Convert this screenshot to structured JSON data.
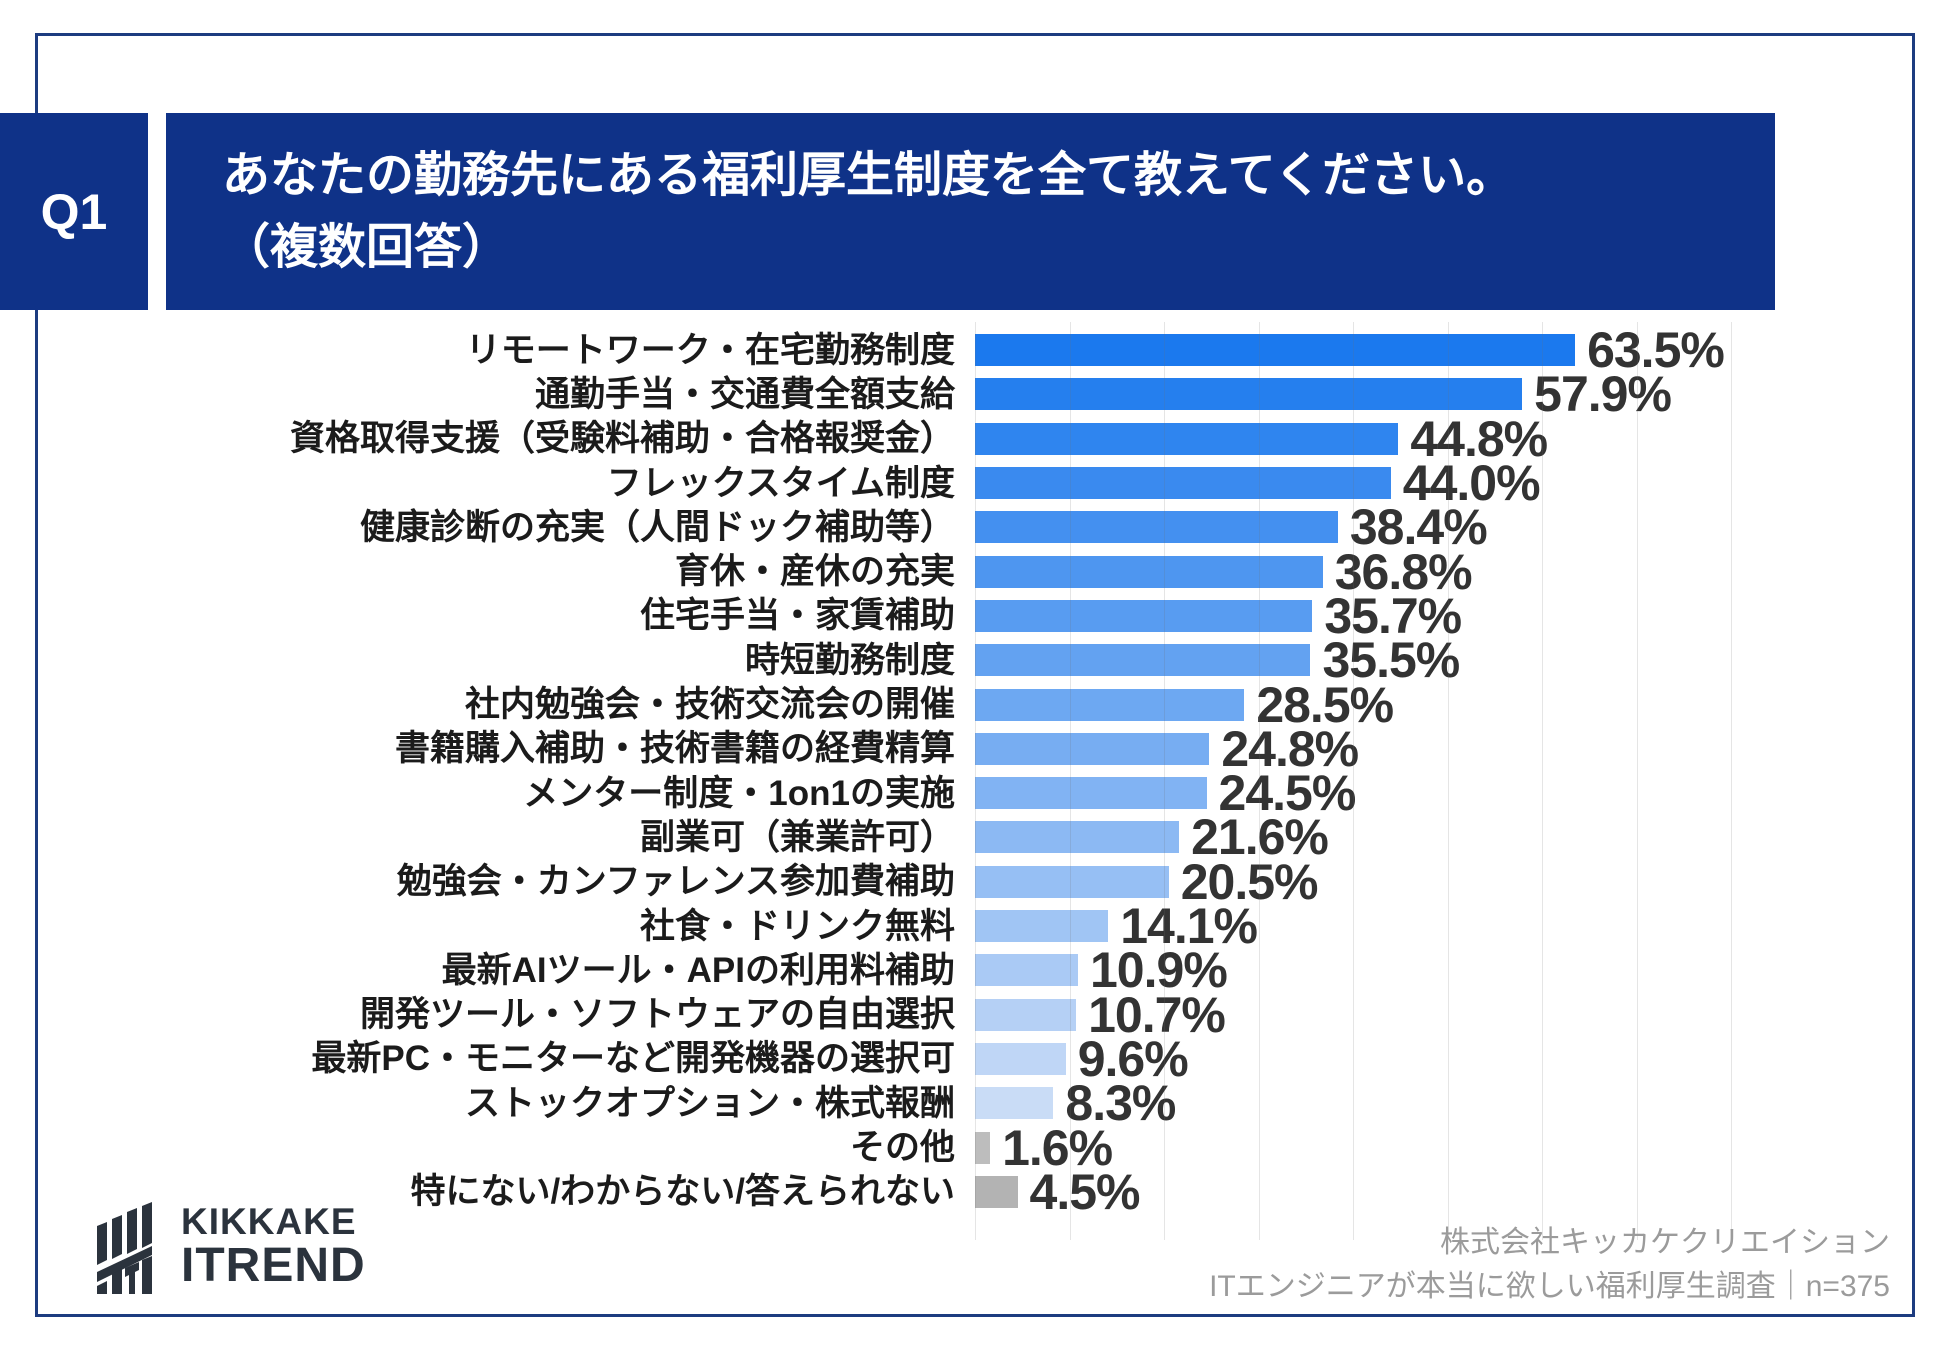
{
  "header": {
    "q_label": "Q1",
    "title_line1": "あなたの勤務先にある福利厚生制度を全て教えてください。",
    "title_line2": "（複数回答）"
  },
  "chart_data": {
    "type": "bar",
    "orientation": "horizontal",
    "unit": "%",
    "xlim": [
      0,
      80
    ],
    "gridline_interval": 10,
    "grid": true,
    "legend": false,
    "categories": [
      "リモートワーク・在宅勤務制度",
      "通勤手当・交通費全額支給",
      "資格取得支援（受験料補助・合格報奨金）",
      "フレックスタイム制度",
      "健康診断の充実（人間ドック補助等）",
      "育休・産休の充実",
      "住宅手当・家賃補助",
      "時短勤務制度",
      "社内勉強会・技術交流会の開催",
      "書籍購入補助・技術書籍の経費精算",
      "メンター制度・1on1の実施",
      "副業可（兼業許可）",
      "勉強会・カンファレンス参加費補助",
      "社食・ドリンク無料",
      "最新AIツール・APIの利用料補助",
      "開発ツール・ソフトウェアの自由選択",
      "最新PC・モニターなど開発機器の選択可",
      "ストックオプション・株式報酬",
      "その他",
      "特にない/わからない/答えられない"
    ],
    "values": [
      63.5,
      57.9,
      44.8,
      44.0,
      38.4,
      36.8,
      35.7,
      35.5,
      28.5,
      24.8,
      24.5,
      21.6,
      20.5,
      14.1,
      10.9,
      10.7,
      9.6,
      8.3,
      1.6,
      4.5
    ],
    "value_labels": [
      "63.5%",
      "57.9%",
      "44.8%",
      "44.0%",
      "38.4%",
      "36.8%",
      "35.7%",
      "35.5%",
      "28.5%",
      "24.8%",
      "24.5%",
      "21.6%",
      "20.5%",
      "14.1%",
      "10.9%",
      "10.7%",
      "9.6%",
      "8.3%",
      "1.6%",
      "4.5%"
    ],
    "bar_colors": [
      "#1b79ee",
      "#257fee",
      "#2f85ef",
      "#3a8aef",
      "#4490f0",
      "#4e96f0",
      "#589cf1",
      "#63a2f1",
      "#6da8f2",
      "#77adf2",
      "#81b3f3",
      "#8cb9f3",
      "#96bff4",
      "#a0c5f4",
      "#aacaf5",
      "#b5d0f5",
      "#bfd6f6",
      "#c9dcf6",
      "#bdbdbd",
      "#b3b3b3"
    ]
  },
  "footer": {
    "logo_line1": "KIKKAKE",
    "logo_line2": "ITREND",
    "credit_line1": "株式会社キッカケクリエイション",
    "credit_line2": "ITエンジニアが本当に欲しい福利厚生調査｜n=375"
  },
  "colors": {
    "navy": "#0f3288",
    "frame_border": "#1d3c80",
    "gridline": "#e3e3e3",
    "label_text": "#1b1b1b",
    "value_text": "#333333",
    "credit_text": "#9b9b9b",
    "logo_color": "#2b333d"
  }
}
